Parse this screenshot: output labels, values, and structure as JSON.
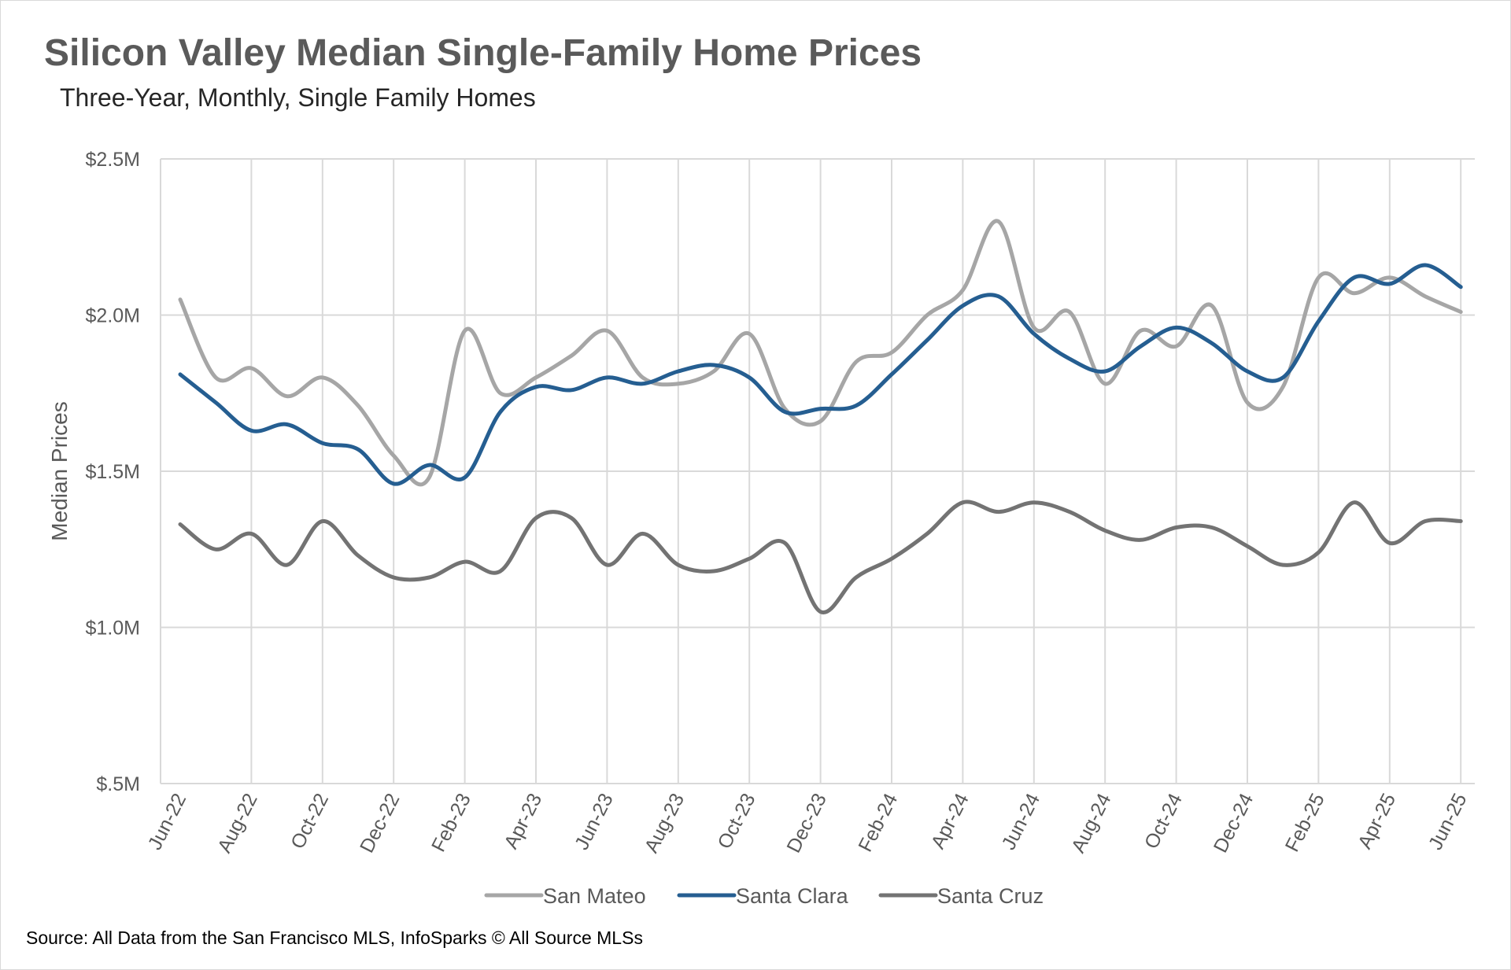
{
  "chart_data": {
    "type": "line",
    "title": "Silicon Valley Median Single-Family Home Prices",
    "subtitle": "Three-Year, Monthly, Single Family Homes",
    "ylabel": "Median Prices",
    "xlabel": "",
    "ylim": [
      0.5,
      2.5
    ],
    "yticks": [
      {
        "value": 0.5,
        "label": "$.5M"
      },
      {
        "value": 1.0,
        "label": "$1.0M"
      },
      {
        "value": 1.5,
        "label": "$1.5M"
      },
      {
        "value": 2.0,
        "label": "$2.0M"
      },
      {
        "value": 2.5,
        "label": "$2.5M"
      }
    ],
    "y_unit": "$M",
    "x": [
      "Jun-22",
      "Jul-22",
      "Aug-22",
      "Sep-22",
      "Oct-22",
      "Nov-22",
      "Dec-22",
      "Jan-23",
      "Feb-23",
      "Mar-23",
      "Apr-23",
      "May-23",
      "Jun-23",
      "Jul-23",
      "Aug-23",
      "Sep-23",
      "Oct-23",
      "Nov-23",
      "Dec-23",
      "Jan-24",
      "Feb-24",
      "Mar-24",
      "Apr-24",
      "May-24",
      "Jun-24",
      "Jul-24",
      "Aug-24",
      "Sep-24",
      "Oct-24",
      "Nov-24",
      "Dec-24",
      "Jan-25",
      "Feb-25",
      "Mar-25",
      "Apr-25",
      "May-25",
      "Jun-25"
    ],
    "x_tick_labels": [
      "Jun-22",
      "Aug-22",
      "Oct-22",
      "Dec-22",
      "Feb-23",
      "Apr-23",
      "Jun-23",
      "Aug-23",
      "Oct-23",
      "Dec-23",
      "Feb-24",
      "Apr-24",
      "Jun-24",
      "Aug-24",
      "Oct-24",
      "Dec-24",
      "Feb-25",
      "Apr-25",
      "Jun-25"
    ],
    "grid": true,
    "legend_position": "bottom",
    "series": [
      {
        "name": "San Mateo",
        "color": "#a6a6a6",
        "values": [
          2.05,
          1.8,
          1.83,
          1.74,
          1.8,
          1.71,
          1.55,
          1.48,
          1.95,
          1.75,
          1.8,
          1.87,
          1.95,
          1.8,
          1.78,
          1.82,
          1.94,
          1.7,
          1.66,
          1.85,
          1.88,
          2.0,
          2.08,
          2.3,
          1.96,
          2.01,
          1.78,
          1.95,
          1.9,
          2.03,
          1.72,
          1.77,
          2.12,
          2.07,
          2.12,
          2.06,
          2.01
        ]
      },
      {
        "name": "Santa Clara",
        "color": "#255e91",
        "values": [
          1.81,
          1.72,
          1.63,
          1.65,
          1.59,
          1.57,
          1.46,
          1.52,
          1.48,
          1.69,
          1.77,
          1.76,
          1.8,
          1.78,
          1.82,
          1.84,
          1.8,
          1.69,
          1.7,
          1.71,
          1.81,
          1.92,
          2.03,
          2.06,
          1.94,
          1.86,
          1.82,
          1.9,
          1.96,
          1.91,
          1.82,
          1.8,
          1.98,
          2.12,
          2.1,
          2.16,
          2.09
        ]
      },
      {
        "name": "Santa Cruz",
        "color": "#737373",
        "values": [
          1.33,
          1.25,
          1.3,
          1.2,
          1.34,
          1.23,
          1.16,
          1.16,
          1.21,
          1.18,
          1.35,
          1.35,
          1.2,
          1.3,
          1.2,
          1.18,
          1.22,
          1.27,
          1.05,
          1.16,
          1.22,
          1.3,
          1.4,
          1.37,
          1.4,
          1.37,
          1.31,
          1.28,
          1.32,
          1.32,
          1.26,
          1.2,
          1.24,
          1.4,
          1.27,
          1.34,
          1.34
        ]
      }
    ],
    "source": "Source: All Data from the San Francisco MLS, InfoSparks © All Source MLSs"
  }
}
